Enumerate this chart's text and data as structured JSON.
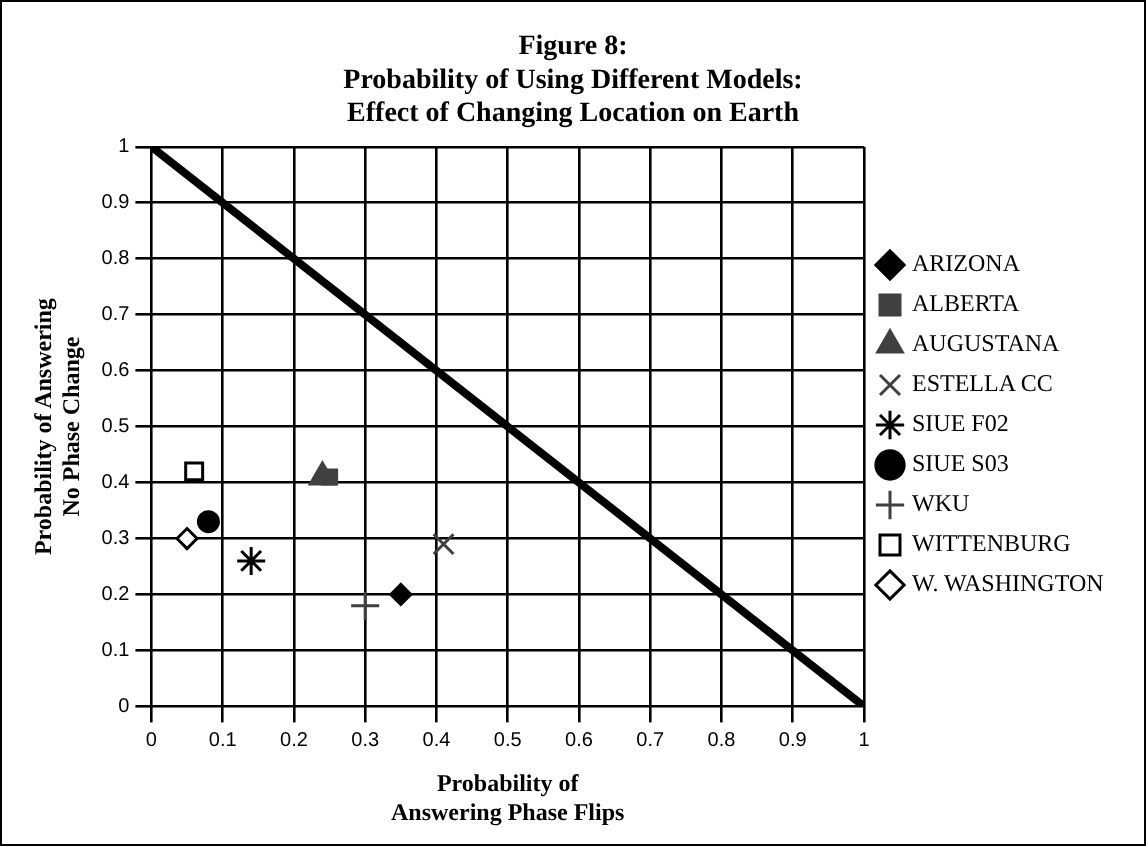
{
  "chart_data": {
    "type": "scatter",
    "title": "Figure 8:\nProbability of Using Different Models:\nEffect of Changing Location on Earth",
    "xlabel": "Probability of Answering Phase Flips",
    "ylabel": "Probability of Answering No Phase Change",
    "xlim": [
      0,
      1
    ],
    "ylim": [
      0,
      1
    ],
    "xticks": [
      0,
      0.1,
      0.2,
      0.3,
      0.4,
      0.5,
      0.6,
      0.7,
      0.8,
      0.9,
      1
    ],
    "yticks": [
      0,
      0.1,
      0.2,
      0.3,
      0.4,
      0.5,
      0.6,
      0.7,
      0.8,
      0.9,
      1
    ],
    "grid": true,
    "legend": "right",
    "series": [
      {
        "name": "ARIZONA",
        "color": "#000000",
        "marker": "diamond",
        "x": [
          0.35
        ],
        "values": [
          0.2
        ]
      },
      {
        "name": "ALBERTA",
        "color": "#404040",
        "marker": "square",
        "x": [
          0.25
        ],
        "values": [
          0.41
        ]
      },
      {
        "name": "AUGUSTANA",
        "color": "#404040",
        "marker": "triangle",
        "x": [
          0.24
        ],
        "values": [
          0.41
        ]
      },
      {
        "name": "ESTELLA CC",
        "color": "#404040",
        "marker": "cross",
        "x": [
          0.41
        ],
        "values": [
          0.29
        ]
      },
      {
        "name": "SIUE F02",
        "color": "#000000",
        "marker": "cross",
        "x": [
          0.14
        ],
        "values": [
          0.26
        ]
      },
      {
        "name": "SIUE S03",
        "color": "#000000",
        "marker": "circle",
        "x": [
          0.08
        ],
        "values": [
          0.33
        ]
      },
      {
        "name": "WKU",
        "color": "#404040",
        "marker": "cross",
        "x": [
          0.3
        ],
        "values": [
          0.18
        ]
      },
      {
        "name": "WITTENBURG",
        "color": "#000000",
        "marker": "square",
        "x": [
          0.06
        ],
        "values": [
          0.42
        ]
      },
      {
        "name": "W. WASHINGTON",
        "color": "#000000",
        "marker": "diamond",
        "x": [
          0.05
        ],
        "values": [
          0.3
        ]
      },
      {
        "type": "line",
        "color": "#000000",
        "marker": "none",
        "x": [
          0,
          1
        ],
        "values": [
          1,
          0
        ]
      }
    ]
  }
}
